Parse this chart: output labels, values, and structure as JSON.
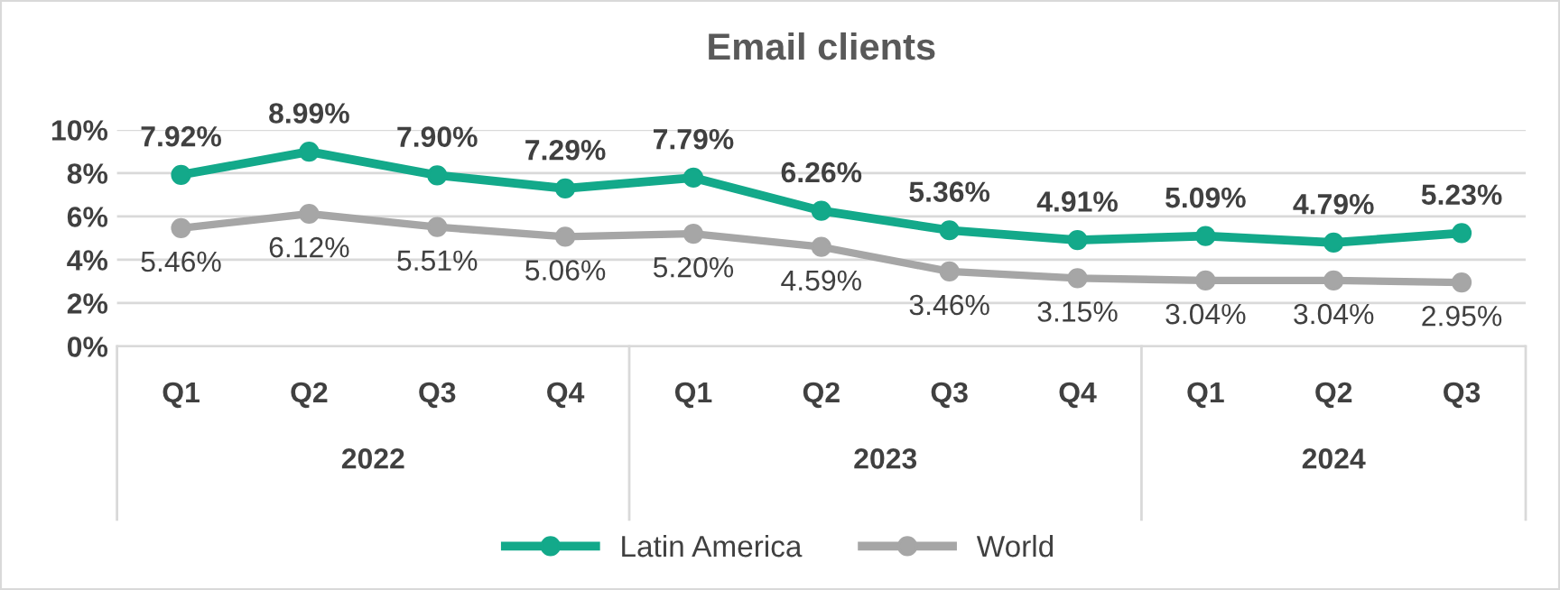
{
  "chart_data": {
    "type": "line",
    "title": "Email clients",
    "categories": [
      "Q1",
      "Q2",
      "Q3",
      "Q4",
      "Q1",
      "Q2",
      "Q3",
      "Q4",
      "Q1",
      "Q2",
      "Q3"
    ],
    "series": [
      {
        "name": "Latin America",
        "color": "#13a98a",
        "values": [
          7.92,
          8.99,
          7.9,
          7.29,
          7.79,
          6.26,
          5.36,
          4.91,
          5.09,
          4.79,
          5.23
        ],
        "value_labels": [
          "7.92%",
          "8.99%",
          "7.90%",
          "7.29%",
          "7.79%",
          "6.26%",
          "5.36%",
          "4.91%",
          "5.09%",
          "4.79%",
          "5.23%"
        ]
      },
      {
        "name": "World",
        "color": "#a6a6a6",
        "values": [
          5.46,
          6.12,
          5.51,
          5.06,
          5.2,
          4.59,
          3.46,
          3.15,
          3.04,
          3.04,
          2.95
        ],
        "value_labels": [
          "5.46%",
          "6.12%",
          "5.51%",
          "5.06%",
          "5.20%",
          "4.59%",
          "3.46%",
          "3.15%",
          "3.04%",
          "3.04%",
          "2.95%"
        ]
      }
    ],
    "ylim": [
      0,
      10
    ],
    "yticks": [
      {
        "value": 0,
        "label": "0%"
      },
      {
        "value": 2,
        "label": "2%"
      },
      {
        "value": 4,
        "label": "4%"
      },
      {
        "value": 6,
        "label": "6%"
      },
      {
        "value": 8,
        "label": "8%"
      },
      {
        "value": 10,
        "label": "10%"
      }
    ],
    "annotations": [
      "2022",
      "2023",
      "2024"
    ],
    "grid": "y",
    "legend": "bottom",
    "marker": "circle",
    "line_style": "solid"
  }
}
